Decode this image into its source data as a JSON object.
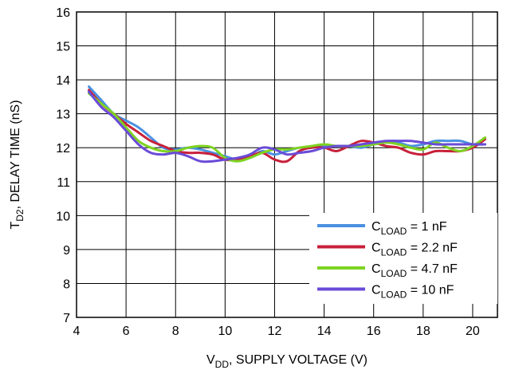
{
  "chart_data": {
    "type": "line",
    "xlabel": {
      "main": "V",
      "sub": "DD",
      "rest": ", SUPPLY VOLTAGE (V)"
    },
    "ylabel": {
      "main": "T",
      "sub": "D2",
      "rest": ", DELAY TIME (nS)"
    },
    "xlim": [
      4,
      21
    ],
    "ylim": [
      7,
      16
    ],
    "xticks": [
      4,
      6,
      8,
      10,
      12,
      14,
      16,
      18,
      20
    ],
    "yticks": [
      7,
      8,
      9,
      10,
      11,
      12,
      13,
      14,
      15,
      16
    ],
    "grid": true,
    "legend_position": "bottom-right",
    "series": [
      {
        "name": "C_LOAD = 1 nF",
        "legend": {
          "main": "C",
          "sub": "LOAD",
          "rest": " = 1 nF"
        },
        "color": "#4a90e2",
        "x": [
          4.5,
          5.0,
          5.5,
          6.0,
          6.5,
          7.0,
          7.5,
          8.0,
          8.5,
          9.0,
          9.5,
          10.0,
          10.5,
          11.0,
          11.5,
          12.0,
          12.5,
          13.0,
          13.5,
          14.0,
          14.5,
          15.0,
          15.5,
          16.0,
          16.5,
          17.0,
          17.5,
          18.0,
          18.5,
          19.0,
          19.5,
          20.0,
          20.5
        ],
        "y": [
          13.8,
          13.4,
          13.0,
          12.8,
          12.6,
          12.3,
          12.0,
          11.95,
          12.0,
          11.95,
          11.85,
          11.75,
          11.65,
          11.7,
          11.9,
          11.8,
          11.9,
          12.0,
          12.0,
          12.05,
          12.05,
          12.05,
          12.0,
          12.1,
          12.15,
          12.15,
          12.05,
          12.1,
          12.2,
          12.2,
          12.2,
          12.1,
          12.1
        ]
      },
      {
        "name": "C_LOAD = 2.2 nF",
        "legend": {
          "main": "C",
          "sub": "LOAD",
          "rest": " = 2.2 nF"
        },
        "color": "#c8203a",
        "x": [
          4.5,
          5.0,
          5.5,
          6.0,
          6.5,
          7.0,
          7.5,
          8.0,
          8.5,
          9.0,
          9.5,
          10.0,
          10.5,
          11.0,
          11.5,
          12.0,
          12.5,
          13.0,
          13.5,
          14.0,
          14.5,
          15.0,
          15.5,
          16.0,
          16.5,
          17.0,
          17.5,
          18.0,
          18.5,
          19.0,
          19.5,
          20.0,
          20.5
        ],
        "y": [
          13.7,
          13.3,
          13.0,
          12.7,
          12.45,
          12.2,
          12.05,
          11.9,
          11.85,
          11.85,
          11.8,
          11.65,
          11.65,
          11.75,
          11.85,
          11.65,
          11.6,
          11.9,
          12.0,
          12.0,
          11.9,
          12.05,
          12.2,
          12.15,
          12.05,
          12.0,
          11.85,
          11.8,
          11.9,
          11.9,
          11.9,
          12.0,
          12.25
        ]
      },
      {
        "name": "C_LOAD = 4.7 nF",
        "legend": {
          "main": "C",
          "sub": "LOAD",
          "rest": " = 4.7 nF"
        },
        "color": "#7ed321",
        "x": [
          4.5,
          5.0,
          5.5,
          6.0,
          6.5,
          7.0,
          7.5,
          8.0,
          8.5,
          9.0,
          9.5,
          10.0,
          10.5,
          11.0,
          11.5,
          12.0,
          12.5,
          13.0,
          13.5,
          14.0,
          14.5,
          15.0,
          15.5,
          16.0,
          16.5,
          17.0,
          17.5,
          18.0,
          18.5,
          19.0,
          19.5,
          20.0,
          20.5
        ],
        "y": [
          13.6,
          13.3,
          13.0,
          12.6,
          12.2,
          12.0,
          11.9,
          11.9,
          12.0,
          12.05,
          12.0,
          11.7,
          11.6,
          11.7,
          11.85,
          11.95,
          11.95,
          12.0,
          12.05,
          12.1,
          12.05,
          12.05,
          12.05,
          12.1,
          12.15,
          12.1,
          12.0,
          11.95,
          12.15,
          12.0,
          11.9,
          12.05,
          12.3
        ]
      },
      {
        "name": "C_LOAD = 10 nF",
        "legend": {
          "main": "C",
          "sub": "LOAD",
          "rest": " = 10 nF"
        },
        "color": "#6a4bd8",
        "x": [
          4.5,
          5.0,
          5.5,
          6.0,
          6.5,
          7.0,
          7.5,
          8.0,
          8.5,
          9.0,
          9.5,
          10.0,
          10.5,
          11.0,
          11.5,
          12.0,
          12.5,
          13.0,
          13.5,
          14.0,
          14.5,
          15.0,
          15.5,
          16.0,
          16.5,
          17.0,
          17.5,
          18.0,
          18.5,
          19.0,
          19.5,
          20.0,
          20.5
        ],
        "y": [
          13.65,
          13.2,
          12.9,
          12.5,
          12.1,
          11.85,
          11.8,
          11.85,
          11.75,
          11.6,
          11.6,
          11.65,
          11.7,
          11.8,
          12.0,
          11.95,
          11.8,
          11.85,
          11.9,
          12.0,
          12.05,
          12.05,
          12.1,
          12.15,
          12.2,
          12.2,
          12.2,
          12.15,
          12.1,
          12.1,
          12.1,
          12.1,
          12.1
        ]
      }
    ]
  }
}
